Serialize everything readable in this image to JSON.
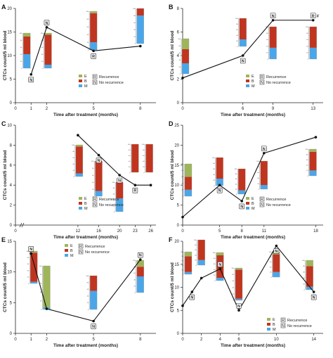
{
  "colors": {
    "E": "#9eb55a",
    "B": "#c0351f",
    "M": "#4aa6e8",
    "line": "#111111"
  },
  "legend": {
    "E": "E",
    "B": "B",
    "M": "M",
    "R_box": "R",
    "R_text": "Recurrence",
    "N_box": "N",
    "N_text": "No recurrence"
  },
  "mini_ticks": [
    "0",
    "20",
    "40",
    "60",
    "80",
    "100"
  ],
  "chart_data": [
    {
      "panel": "A",
      "type": "line",
      "xlabel": "Time after treatment (months)",
      "ylabel": "CTCs count/5 ml blood",
      "xticks": [
        "0",
        "1",
        "2",
        "5",
        "8"
      ],
      "xtick_values": [
        0,
        1,
        2,
        5,
        8
      ],
      "xlim": [
        0,
        9
      ],
      "yticks": [
        "0",
        "5",
        "10",
        "15",
        "20"
      ],
      "ylim": [
        0,
        20
      ],
      "points": [
        {
          "x": 1,
          "y": 6,
          "m": "N"
        },
        {
          "x": 2,
          "y": 16,
          "m": "N"
        },
        {
          "x": 5,
          "y": 11,
          "m": "R"
        },
        {
          "x": 8,
          "y": 12,
          "m": ""
        }
      ],
      "bars": [
        {
          "x": 1,
          "E": 10,
          "B": 50,
          "M": 40
        },
        {
          "x": 2,
          "E": 5,
          "B": 85,
          "M": 10
        },
        {
          "x": 5,
          "E": 5,
          "B": 75,
          "M": 20
        },
        {
          "x": 8,
          "E": 0,
          "B": 20,
          "M": 80
        }
      ],
      "legend": "right"
    },
    {
      "panel": "B",
      "type": "line",
      "xlabel": "Time after treatment (months)",
      "ylabel": "CTCs count/5 ml blood",
      "xticks": [
        "0",
        "6",
        "9",
        "13"
      ],
      "xtick_values": [
        0,
        6,
        9,
        13
      ],
      "xlim": [
        0,
        14
      ],
      "yticks": [
        "0",
        "2",
        "4",
        "6",
        "8"
      ],
      "ylim": [
        0,
        8
      ],
      "points": [
        {
          "x": 0,
          "y": 2.1,
          "m": ""
        },
        {
          "x": 6,
          "y": 4,
          "m": "N"
        },
        {
          "x": 9,
          "y": 7,
          "m": "N"
        },
        {
          "x": 13,
          "y": 7,
          "m": "R#"
        }
      ],
      "bars": [
        {
          "x": 0,
          "E": 30,
          "B": 40,
          "M": 30
        },
        {
          "x": 6,
          "E": 0,
          "B": 75,
          "M": 25
        },
        {
          "x": 9,
          "E": 0,
          "B": 65,
          "M": 35
        },
        {
          "x": 13,
          "E": 0,
          "B": 65,
          "M": 35
        }
      ],
      "legend": "right"
    },
    {
      "panel": "C",
      "type": "line",
      "xlabel": "Time after treatment (months)",
      "ylabel": "CTCs count/5 ml blood",
      "xticks": [
        "0",
        "12",
        "16",
        "20",
        "23",
        "26"
      ],
      "xtick_values": [
        0,
        12,
        16,
        20,
        23,
        26
      ],
      "xlim": [
        0,
        27
      ],
      "yticks": [
        "0",
        "2",
        "4",
        "6",
        "8",
        "10"
      ],
      "ylim": [
        0,
        10
      ],
      "points": [
        {
          "x": 12,
          "y": 9,
          "m": ""
        },
        {
          "x": 16,
          "y": 7,
          "m": "N"
        },
        {
          "x": 20,
          "y": 5,
          "m": "N"
        },
        {
          "x": 23,
          "y": 4,
          "m": "R"
        },
        {
          "x": 26,
          "y": 4,
          "m": ""
        }
      ],
      "bars": [
        {
          "x": 12,
          "E": 5,
          "B": 85,
          "M": 10
        },
        {
          "x": 16,
          "E": 0,
          "B": 85,
          "M": 15
        },
        {
          "x": 20,
          "E": 0,
          "B": 55,
          "M": 45
        },
        {
          "x": 23,
          "E": 0,
          "B": 100,
          "M": 0
        },
        {
          "x": 26,
          "E": 0,
          "B": 100,
          "M": 0
        }
      ],
      "legend": "right"
    },
    {
      "panel": "D",
      "type": "line",
      "xlabel": "Time after treatment (months)",
      "ylabel": "CTCs count/5 ml blood",
      "xticks": [
        "0",
        "5",
        "8",
        "11",
        "18"
      ],
      "xtick_values": [
        0,
        5,
        8,
        11,
        18
      ],
      "xlim": [
        0,
        19
      ],
      "yticks": [
        "0",
        "5",
        "10",
        "15",
        "20",
        "25"
      ],
      "ylim": [
        0,
        25
      ],
      "points": [
        {
          "x": 0,
          "y": 2,
          "m": ""
        },
        {
          "x": 5,
          "y": 10,
          "m": "N"
        },
        {
          "x": 8,
          "y": 6,
          "m": "N"
        },
        {
          "x": 11,
          "y": 18,
          "m": "N"
        },
        {
          "x": 18,
          "y": 22,
          "m": ""
        }
      ],
      "bars": [
        {
          "x": 0,
          "E": 40,
          "B": 40,
          "M": 20
        },
        {
          "x": 5,
          "E": 0,
          "B": 75,
          "M": 25
        },
        {
          "x": 8,
          "E": 0,
          "B": 85,
          "M": 15
        },
        {
          "x": 11,
          "E": 0,
          "B": 85,
          "M": 15
        },
        {
          "x": 18,
          "E": 10,
          "B": 70,
          "M": 20
        }
      ],
      "legend": "right"
    },
    {
      "panel": "E",
      "type": "line",
      "xlabel": "Time after treatment (months)",
      "ylabel": "CTCs count/5 ml blood",
      "xticks": [
        "0",
        "1",
        "2",
        "5",
        "8"
      ],
      "xtick_values": [
        0,
        1,
        2,
        5,
        8
      ],
      "xlim": [
        0,
        9
      ],
      "yticks": [
        "0",
        "5",
        "10",
        "15"
      ],
      "ylim": [
        0,
        15
      ],
      "points": [
        {
          "x": 1,
          "y": 13,
          "m": "N"
        },
        {
          "x": 2,
          "y": 4,
          "m": ""
        },
        {
          "x": 5,
          "y": 2,
          "m": "N"
        },
        {
          "x": 8,
          "y": 12,
          "m": "N"
        }
      ],
      "bars": [
        {
          "x": 1,
          "E": 5,
          "B": 90,
          "M": 5
        },
        {
          "x": 2,
          "E": 95,
          "B": 0,
          "M": 5
        },
        {
          "x": 5,
          "E": 0,
          "B": 45,
          "M": 55
        },
        {
          "x": 8,
          "E": 20,
          "B": 30,
          "M": 50
        }
      ],
      "legend": "top"
    },
    {
      "panel": "F",
      "type": "line",
      "xlabel": "Time after treatment (months)",
      "ylabel": "CTCs count/5 ml blood",
      "xticks": [
        "0",
        "2",
        "4",
        "6",
        "10",
        "14"
      ],
      "xtick_values": [
        0,
        2,
        4,
        6,
        10,
        14
      ],
      "xlim": [
        0,
        15
      ],
      "yticks": [
        "0",
        "5",
        "10",
        "15",
        "20"
      ],
      "ylim": [
        0,
        20
      ],
      "points": [
        {
          "x": 0,
          "y": 6,
          "m": ""
        },
        {
          "x": 1,
          "y": 9,
          "m": "N"
        },
        {
          "x": 2,
          "y": 12,
          "m": ""
        },
        {
          "x": 4,
          "y": 14,
          "m": "N"
        },
        {
          "x": 6,
          "y": 5,
          "m": "N"
        },
        {
          "x": 10,
          "y": 19,
          "m": "N"
        },
        {
          "x": 14,
          "y": 9,
          "m": "N"
        }
      ],
      "bars": [
        {
          "x": 0,
          "E": 20,
          "B": 70,
          "M": 10
        },
        {
          "x": 2,
          "E": 0,
          "B": 80,
          "M": 20
        },
        {
          "x": 4,
          "E": 10,
          "B": 80,
          "M": 10
        },
        {
          "x": 6,
          "E": 5,
          "B": 90,
          "M": 5
        },
        {
          "x": 10,
          "E": 10,
          "B": 70,
          "M": 20
        },
        {
          "x": 14,
          "E": 20,
          "B": 70,
          "M": 10
        }
      ],
      "legend": "bottom-right"
    }
  ]
}
